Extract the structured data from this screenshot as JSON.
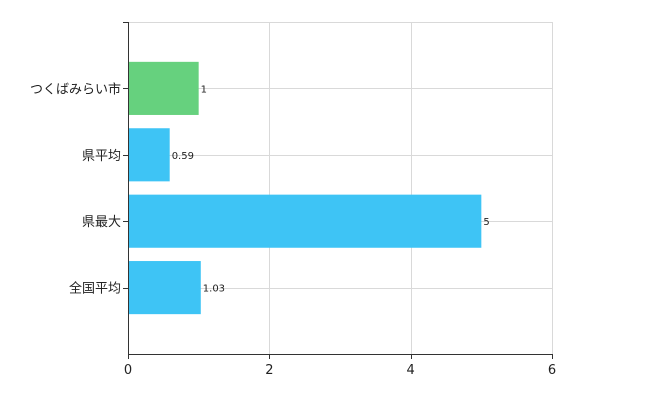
{
  "chart_data": {
    "type": "bar",
    "orientation": "horizontal",
    "title": "",
    "xlabel": "",
    "ylabel": "",
    "categories": [
      "つくばみらい市",
      "県平均",
      "県最大",
      "全国平均"
    ],
    "values": [
      1,
      0.59,
      5,
      1.03
    ],
    "value_labels": [
      "1",
      "0.59",
      "5",
      "1.03"
    ],
    "bar_colors": [
      "#66d17e",
      "#3ec4f5",
      "#3ec4f5",
      "#3ec4f5"
    ],
    "xlim": [
      0,
      6
    ],
    "xticks": [
      0,
      2,
      4,
      6
    ],
    "grid": true,
    "legend": "none"
  }
}
